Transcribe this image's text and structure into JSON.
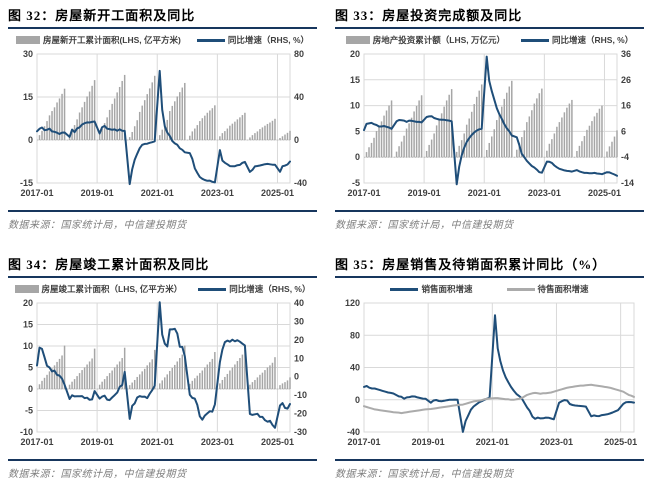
{
  "page": {
    "background": "#ffffff",
    "accent_rule_color": "#17365d",
    "bar_color": "#a6a6a6",
    "line_color": "#1f4e79",
    "gray_line_color": "#ababab"
  },
  "chart_data": [
    {
      "id": "图 32",
      "title": "图 32：房屋新开工面积及同比",
      "source": "数据来源：国家统计局，中信建投期货",
      "type": "bar+line",
      "x_range": [
        "2017-01",
        "2025-06"
      ],
      "x_ticks": [
        "2017-01",
        "2019-01",
        "2021-01",
        "2023-01",
        "2025-01"
      ],
      "left_ticks": [
        30,
        15,
        0,
        -15
      ],
      "right_ticks": [
        80,
        40,
        0,
        -40
      ],
      "grid": true,
      "series": [
        {
          "name": "房屋新开工累计面积(LHS, 亿平方米)",
          "type": "bar",
          "axis": "left",
          "color": "#a6a6a6",
          "values": [
            null,
            1.7,
            3.2,
            4.8,
            6.6,
            8.6,
            10.1,
            11.4,
            13.1,
            14.5,
            16.1,
            17.9,
            null,
            1.8,
            3.5,
            5.2,
            7.2,
            9.6,
            11.4,
            13.3,
            15.2,
            16.9,
            18.9,
            20.9,
            null,
            2.1,
            3.9,
            5.9,
            7.9,
            10.5,
            12.6,
            14.5,
            16.6,
            18.5,
            20.6,
            22.7,
            null,
            1.0,
            2.8,
            4.8,
            6.9,
            9.8,
            12.0,
            13.9,
            16.0,
            18.0,
            20.1,
            22.4,
            null,
            1.7,
            3.6,
            5.3,
            7.0,
            10.1,
            11.9,
            13.5,
            15.2,
            16.7,
            18.3,
            19.9,
            null,
            1.5,
            3.0,
            4.0,
            5.2,
            6.6,
            7.6,
            8.5,
            9.5,
            10.3,
            11.1,
            12.1,
            null,
            1.3,
            2.4,
            3.1,
            4.0,
            5.0,
            5.7,
            6.4,
            7.2,
            7.9,
            8.7,
            9.5,
            null,
            0.9,
            1.7,
            2.4,
            3.0,
            3.8,
            4.4,
            5.0,
            5.6,
            6.1,
            6.7,
            7.4,
            null,
            0.7,
            1.3,
            1.9,
            2.5,
            3.2
          ]
        },
        {
          "name": "同比增速（RHS, %）",
          "type": "line",
          "axis": "right",
          "color": "#1f4e79",
          "values": [
            8.1,
            10.4,
            11.6,
            9.1,
            9.5,
            10.6,
            8.0,
            7.6,
            6.8,
            5.6,
            6.9,
            7.0,
            null,
            2.9,
            9.7,
            7.3,
            10.8,
            11.8,
            14.4,
            15.6,
            16.4,
            16.3,
            16.8,
            17.2,
            null,
            6.0,
            11.9,
            13.1,
            10.5,
            10.1,
            9.5,
            9.9,
            8.6,
            10.0,
            8.6,
            8.5,
            null,
            -41.0,
            -27.2,
            -18.4,
            -12.8,
            -7.6,
            -4.5,
            -3.6,
            -3.4,
            -2.6,
            -2.0,
            -1.2,
            null,
            64.3,
            28.2,
            12.8,
            6.9,
            3.8,
            -0.9,
            -3.2,
            -4.5,
            -7.7,
            -9.1,
            -11.4,
            null,
            -12.2,
            -17.5,
            -26.3,
            -30.6,
            -34.4,
            -36.1,
            -37.2,
            -38.0,
            -37.8,
            -38.9,
            -39.4,
            null,
            -9.4,
            -19.2,
            -21.2,
            -22.6,
            -24.3,
            -24.5,
            -24.4,
            -23.4,
            -23.2,
            -21.2,
            -20.4,
            null,
            -29.7,
            -27.8,
            -24.6,
            -24.2,
            -23.7,
            -23.2,
            -22.5,
            -22.2,
            -22.6,
            -23.0,
            -23.0,
            null,
            -29.6,
            -24.4,
            -23.8,
            -22.8,
            -20.0
          ]
        }
      ]
    },
    {
      "id": "图 33",
      "title": "图 33：房屋投资完成额及同比",
      "source": "数据来源：国家统计局，中信建投期货",
      "type": "bar+line",
      "x_range": [
        "2017-01",
        "2025-06"
      ],
      "x_ticks": [
        "2017-01",
        "2019-01",
        "2021-01",
        "2023-01",
        "2025-01"
      ],
      "left_ticks": [
        20,
        15,
        10,
        5,
        0,
        -5
      ],
      "right_ticks": [
        36,
        26,
        16,
        6,
        -4,
        -14
      ],
      "grid": true,
      "series": [
        {
          "name": "房地产投资累计额（LHS, 万亿元）",
          "type": "bar",
          "axis": "left",
          "color": "#a6a6a6",
          "values": [
            null,
            0.99,
            1.93,
            2.77,
            3.76,
            5.06,
            5.98,
            6.94,
            8.06,
            9.05,
            10.0,
            11.0,
            null,
            1.08,
            2.13,
            3.03,
            4.16,
            5.55,
            6.56,
            7.66,
            8.87,
            9.93,
            11.0,
            12.0,
            null,
            1.21,
            2.38,
            3.42,
            4.6,
            6.16,
            7.28,
            8.5,
            9.8,
            11.0,
            12.1,
            13.2,
            null,
            1.03,
            2.2,
            3.3,
            4.6,
            6.3,
            7.5,
            8.8,
            10.3,
            11.7,
            12.9,
            14.1,
            null,
            1.4,
            2.76,
            4.02,
            5.42,
            7.2,
            8.4,
            9.8,
            11.3,
            12.5,
            13.7,
            14.8,
            null,
            1.45,
            2.78,
            3.9,
            5.2,
            6.8,
            7.9,
            9.1,
            10.4,
            11.4,
            12.4,
            13.3,
            null,
            1.25,
            2.6,
            3.5,
            4.6,
            5.9,
            6.8,
            7.7,
            8.7,
            9.6,
            10.4,
            11.1,
            null,
            1.2,
            2.2,
            3.1,
            4.1,
            5.3,
            6.1,
            7.0,
            7.9,
            8.6,
            9.4,
            10.0,
            null,
            1.1,
            2.1,
            3.0,
            4.0,
            5.2
          ]
        },
        {
          "name": "同比增速（RHS, %）",
          "type": "line",
          "axis": "right",
          "color": "#1f4e79",
          "values": [
            6.5,
            8.9,
            9.1,
            9.3,
            8.8,
            8.5,
            7.9,
            7.9,
            8.1,
            7.8,
            7.5,
            7.0,
            null,
            9.9,
            10.4,
            10.3,
            10.2,
            9.7,
            10.2,
            10.1,
            9.9,
            9.7,
            9.7,
            9.5,
            null,
            11.6,
            11.8,
            11.9,
            11.2,
            10.9,
            10.6,
            10.5,
            10.5,
            10.3,
            10.2,
            9.9,
            null,
            -14.5,
            -7.7,
            -3.3,
            -0.3,
            1.9,
            3.4,
            4.6,
            5.6,
            6.3,
            6.8,
            7.0,
            null,
            35.0,
            25.6,
            21.6,
            18.3,
            15.0,
            12.7,
            10.9,
            8.8,
            7.2,
            6.0,
            4.4,
            null,
            3.7,
            0.7,
            -2.7,
            -4.0,
            -5.4,
            -6.4,
            -7.4,
            -8.0,
            -8.8,
            -9.8,
            -10.0,
            null,
            -5.7,
            -5.8,
            -6.2,
            -7.2,
            -7.9,
            -8.5,
            -8.8,
            -9.1,
            -9.3,
            -9.4,
            -9.6,
            null,
            -9.0,
            -9.5,
            -9.8,
            -10.1,
            -10.1,
            -10.2,
            -10.2,
            -10.1,
            -10.3,
            -10.4,
            -10.6,
            null,
            -9.8,
            -9.9,
            -10.3,
            -10.7,
            -11.2
          ]
        }
      ]
    },
    {
      "id": "图 34",
      "title": "图 34：房屋竣工累计面积及同比",
      "source": "数据来源：国家统计局，中信建投期货",
      "type": "bar+line",
      "x_range": [
        "2017-01",
        "2025-06"
      ],
      "x_ticks": [
        "2017-01",
        "2019-01",
        "2021-01",
        "2023-01",
        "2025-01"
      ],
      "left_ticks": [
        20,
        15,
        10,
        5,
        0,
        -5,
        -10
      ],
      "right_ticks": [
        40,
        30,
        20,
        10,
        0,
        -10,
        -20,
        -30
      ],
      "grid": true,
      "series": [
        {
          "name": "房屋竣工累计面积（LHS, 亿平方米）",
          "type": "bar",
          "axis": "left",
          "color": "#a6a6a6",
          "values": [
            null,
            1.1,
            1.9,
            2.6,
            3.3,
            4.1,
            4.8,
            5.5,
            6.3,
            7.0,
            7.8,
            10.1,
            null,
            1.0,
            1.7,
            2.3,
            3.0,
            3.7,
            4.4,
            5.0,
            5.7,
            6.4,
            7.1,
            9.4,
            null,
            1.0,
            1.7,
            2.3,
            3.0,
            3.7,
            4.3,
            5.0,
            5.7,
            6.4,
            7.2,
            9.6,
            null,
            0.9,
            1.5,
            2.1,
            2.8,
            3.4,
            4.1,
            4.7,
            5.5,
            6.2,
            6.9,
            9.1,
            null,
            1.3,
            2.0,
            2.7,
            3.4,
            4.2,
            4.9,
            5.6,
            6.4,
            7.2,
            8.0,
            10.1,
            null,
            1.2,
            1.9,
            2.5,
            3.1,
            3.7,
            4.3,
            5.0,
            5.7,
            6.3,
            7.0,
            8.6,
            null,
            1.3,
            2.1,
            2.8,
            3.5,
            4.3,
            5.0,
            5.7,
            6.5,
            7.2,
            8.0,
            10.0,
            null,
            1.0,
            1.6,
            2.1,
            2.7,
            3.3,
            3.8,
            4.4,
            5.0,
            5.5,
            6.1,
            7.4,
            null,
            0.9,
            1.3,
            1.6,
            2.0,
            2.7
          ]
        },
        {
          "name": "同比增速（RHS, %）",
          "type": "line",
          "axis": "right",
          "color": "#1f4e79",
          "values": [
            6.1,
            15.8,
            15.1,
            10.6,
            5.9,
            5.0,
            2.9,
            3.3,
            1.0,
            0.6,
            -1.0,
            -4.4,
            null,
            -12.1,
            -10.1,
            -10.7,
            -10.6,
            -10.6,
            -10.5,
            -11.6,
            -11.4,
            -12.5,
            -12.3,
            -7.8,
            null,
            -11.9,
            -10.8,
            -10.3,
            -12.4,
            -12.7,
            -11.3,
            -10.0,
            -8.6,
            -5.5,
            -4.5,
            2.6,
            null,
            -22.9,
            -15.8,
            -14.5,
            -11.3,
            -10.5,
            -10.9,
            -10.8,
            -11.6,
            -9.2,
            -7.3,
            -4.9,
            null,
            40.4,
            22.9,
            17.9,
            16.4,
            25.7,
            25.7,
            26.0,
            23.4,
            16.3,
            16.2,
            11.2,
            null,
            -9.8,
            -11.5,
            -11.9,
            -15.3,
            -21.5,
            -23.3,
            -21.1,
            -19.9,
            -18.7,
            -19.0,
            -15.0,
            null,
            8.0,
            14.7,
            18.8,
            19.6,
            19.0,
            20.1,
            19.2,
            19.8,
            19.0,
            17.9,
            17.0,
            null,
            -20.2,
            -20.7,
            -20.4,
            -20.1,
            -21.8,
            -21.8,
            -23.6,
            -24.4,
            -23.9,
            -26.2,
            -27.7,
            null,
            -15.6,
            -14.3,
            -16.9,
            -17.3,
            -14.8
          ]
        }
      ]
    },
    {
      "id": "图 35",
      "title": "图 35：房屋销售及待销面积累计同比（%）",
      "source": "数据来源：国家统计局，中信建投期货",
      "type": "line",
      "x_range": [
        "2017-01",
        "2025-06"
      ],
      "x_ticks": [
        "2017-01",
        "2019-01",
        "2021-01",
        "2023-01",
        "2025-01"
      ],
      "left_ticks": [
        120,
        80,
        40,
        0,
        -40
      ],
      "right_ticks": null,
      "grid": true,
      "series": [
        {
          "name": "销售面积增速",
          "type": "line",
          "axis": "left",
          "color": "#1f4e79",
          "values": [
            16,
            17,
            15,
            14,
            14,
            13,
            12,
            11,
            10,
            9,
            8.5,
            7.7,
            null,
            4.1,
            3.6,
            1.3,
            2.9,
            3.3,
            4.2,
            4.0,
            2.9,
            2.2,
            1.4,
            1.3,
            null,
            -3.6,
            -0.9,
            -0.3,
            -1.6,
            -1.8,
            -1.3,
            -0.6,
            -0.1,
            0.1,
            0.2,
            -0.1,
            null,
            -39.9,
            -26.3,
            -19.3,
            -12.3,
            -8.4,
            -5.8,
            -3.3,
            -1.8,
            0.0,
            1.3,
            2.6,
            null,
            104.9,
            63.8,
            48.1,
            36.3,
            27.7,
            21.5,
            15.9,
            11.3,
            7.3,
            4.8,
            1.9,
            null,
            -9.6,
            -13.8,
            -20.9,
            -23.6,
            -22.2,
            -23.1,
            -23.0,
            -22.2,
            -22.3,
            -23.3,
            -24.3,
            null,
            -3.6,
            -1.8,
            -0.4,
            -0.9,
            -5.3,
            -6.5,
            -7.1,
            -7.5,
            -7.8,
            -8.0,
            -8.5,
            null,
            -20.5,
            -19.4,
            -20.2,
            -20.3,
            -19.0,
            -18.6,
            -18.0,
            -17.1,
            -15.8,
            -14.3,
            -12.9,
            null,
            -5.1,
            -3.0,
            -2.8,
            -2.9,
            -3.5
          ]
        },
        {
          "name": "待售面积增速",
          "type": "line",
          "axis": "left",
          "color": "#ababab",
          "values": [
            -8,
            -9,
            -10,
            -11,
            -12,
            -12.5,
            -13,
            -13.5,
            -14,
            -14.5,
            -15,
            -15.5,
            null,
            -16,
            -16.5,
            -16,
            -15.5,
            -15,
            -14.5,
            -14,
            -13.5,
            -13,
            -12.5,
            -12,
            null,
            -11.5,
            -11,
            -10.5,
            -10,
            -9.5,
            -9,
            -8.5,
            -8,
            -7.5,
            -7,
            -6.5,
            null,
            -6,
            -5,
            -4,
            -3,
            -2,
            -1.5,
            -1,
            -0.5,
            0.5,
            1,
            1.5,
            null,
            2,
            2,
            1.5,
            1,
            0.5,
            0.5,
            0,
            0,
            0.5,
            1,
            2,
            null,
            6,
            7,
            8,
            8.5,
            8,
            7.5,
            8,
            8,
            8.5,
            9,
            10,
            null,
            12,
            13,
            14,
            15,
            15.5,
            16,
            16.5,
            17,
            17.5,
            17.5,
            18,
            null,
            18.5,
            18,
            17.5,
            17,
            16.5,
            16,
            15.5,
            15,
            14,
            13,
            12,
            null,
            10,
            8,
            6,
            5,
            3.5
          ]
        }
      ]
    }
  ]
}
